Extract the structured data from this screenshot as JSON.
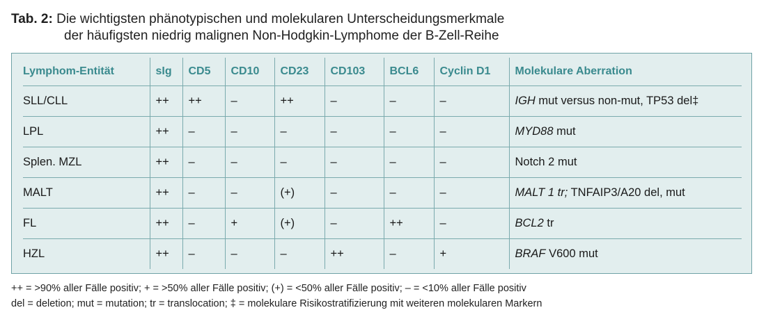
{
  "caption": {
    "label": "Tab. 2:",
    "line1": "Die wichtigsten phänotypischen und molekularen Unterscheidungsmerkmale",
    "line2": "der häufigsten niedrig malignen Non-Hodgkin-Lymphome der B-Zell-Reihe"
  },
  "table": {
    "headers": [
      "Lymphom-Entität",
      "sIg",
      "CD5",
      "CD10",
      "CD23",
      "CD103",
      "BCL6",
      "Cyclin D1",
      "Molekulare Aberration"
    ],
    "rows": [
      {
        "entity": "SLL/CLL",
        "sig": "++",
        "cd5": "++",
        "cd10": "–",
        "cd23": "++",
        "cd103": "–",
        "bcl6": "–",
        "cyclin": "–",
        "aberration": {
          "italic": "IGH",
          "rest": " mut versus non-mut, TP53 del‡"
        }
      },
      {
        "entity": "LPL",
        "sig": "++",
        "cd5": "–",
        "cd10": "–",
        "cd23": "–",
        "cd103": "–",
        "bcl6": "–",
        "cyclin": "–",
        "aberration": {
          "italic": "MYD88",
          "rest": " mut"
        }
      },
      {
        "entity": "Splen. MZL",
        "sig": "++",
        "cd5": "–",
        "cd10": "–",
        "cd23": "–",
        "cd103": "–",
        "bcl6": "–",
        "cyclin": "–",
        "aberration": {
          "italic": "",
          "rest": "Notch 2 mut"
        }
      },
      {
        "entity": "MALT",
        "sig": "++",
        "cd5": "–",
        "cd10": "–",
        "cd23": "(+)",
        "cd103": "–",
        "bcl6": "–",
        "cyclin": "–",
        "aberration": {
          "italic": "MALT 1 tr;",
          "rest": " TNFAIP3/A20 del, mut"
        }
      },
      {
        "entity": "FL",
        "sig": "++",
        "cd5": "–",
        "cd10": "+",
        "cd23": "(+)",
        "cd103": "–",
        "bcl6": "++",
        "cyclin": "–",
        "aberration": {
          "italic": "BCL2",
          "rest": " tr"
        }
      },
      {
        "entity": "HZL",
        "sig": "++",
        "cd5": "–",
        "cd10": "–",
        "cd23": "–",
        "cd103": "++",
        "bcl6": "–",
        "cyclin": "+",
        "aberration": {
          "italic": "BRAF",
          "rest": " V600 mut"
        }
      }
    ]
  },
  "footnotes": {
    "line1": "++ = >90% aller Fälle positiv; + = >50% aller Fälle positiv; (+) = <50% aller Fälle positiv; – = <10% aller Fälle positiv",
    "line2": "del = deletion; mut = mutation; tr = translocation; ‡ = molekulare Risikostratifizierung mit weiteren molekularen Markern"
  },
  "colors": {
    "header_text": "#3a8a8e",
    "table_background": "#e2eeee",
    "border": "#6fa2a6"
  }
}
